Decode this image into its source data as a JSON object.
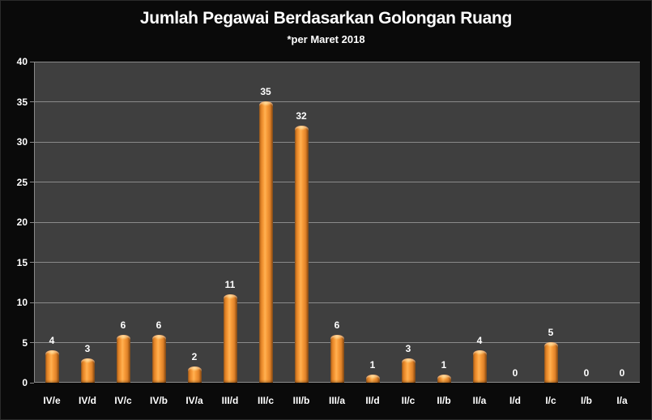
{
  "chart_data": {
    "type": "bar",
    "title": "Jumlah Pegawai Berdasarkan Golongan Ruang",
    "subtitle": "*per Maret 2018",
    "categories": [
      "IV/e",
      "IV/d",
      "IV/c",
      "IV/b",
      "IV/a",
      "III/d",
      "III/c",
      "III/b",
      "III/a",
      "II/d",
      "II/c",
      "II/b",
      "II/a",
      "I/d",
      "I/c",
      "I/b",
      "I/a"
    ],
    "values": [
      4,
      3,
      6,
      6,
      2,
      11,
      35,
      32,
      6,
      1,
      3,
      1,
      4,
      0,
      5,
      0,
      0
    ],
    "xlabel": "",
    "ylabel": "",
    "ylim": [
      0,
      40
    ],
    "yticks": [
      0,
      5,
      10,
      15,
      20,
      25,
      30,
      35,
      40
    ],
    "grid": "horizontal",
    "legend_position": "none",
    "data_labels_shown": true,
    "colors": {
      "page_background": "#0a0a0a",
      "plot_background": "#3f3f3f",
      "gridline": "#8a8a8a",
      "bar_fill": "#f79646",
      "bar_edge_dark": "#8c4d12",
      "bar_highlight": "#ffb152",
      "text": "#ffffff"
    }
  }
}
